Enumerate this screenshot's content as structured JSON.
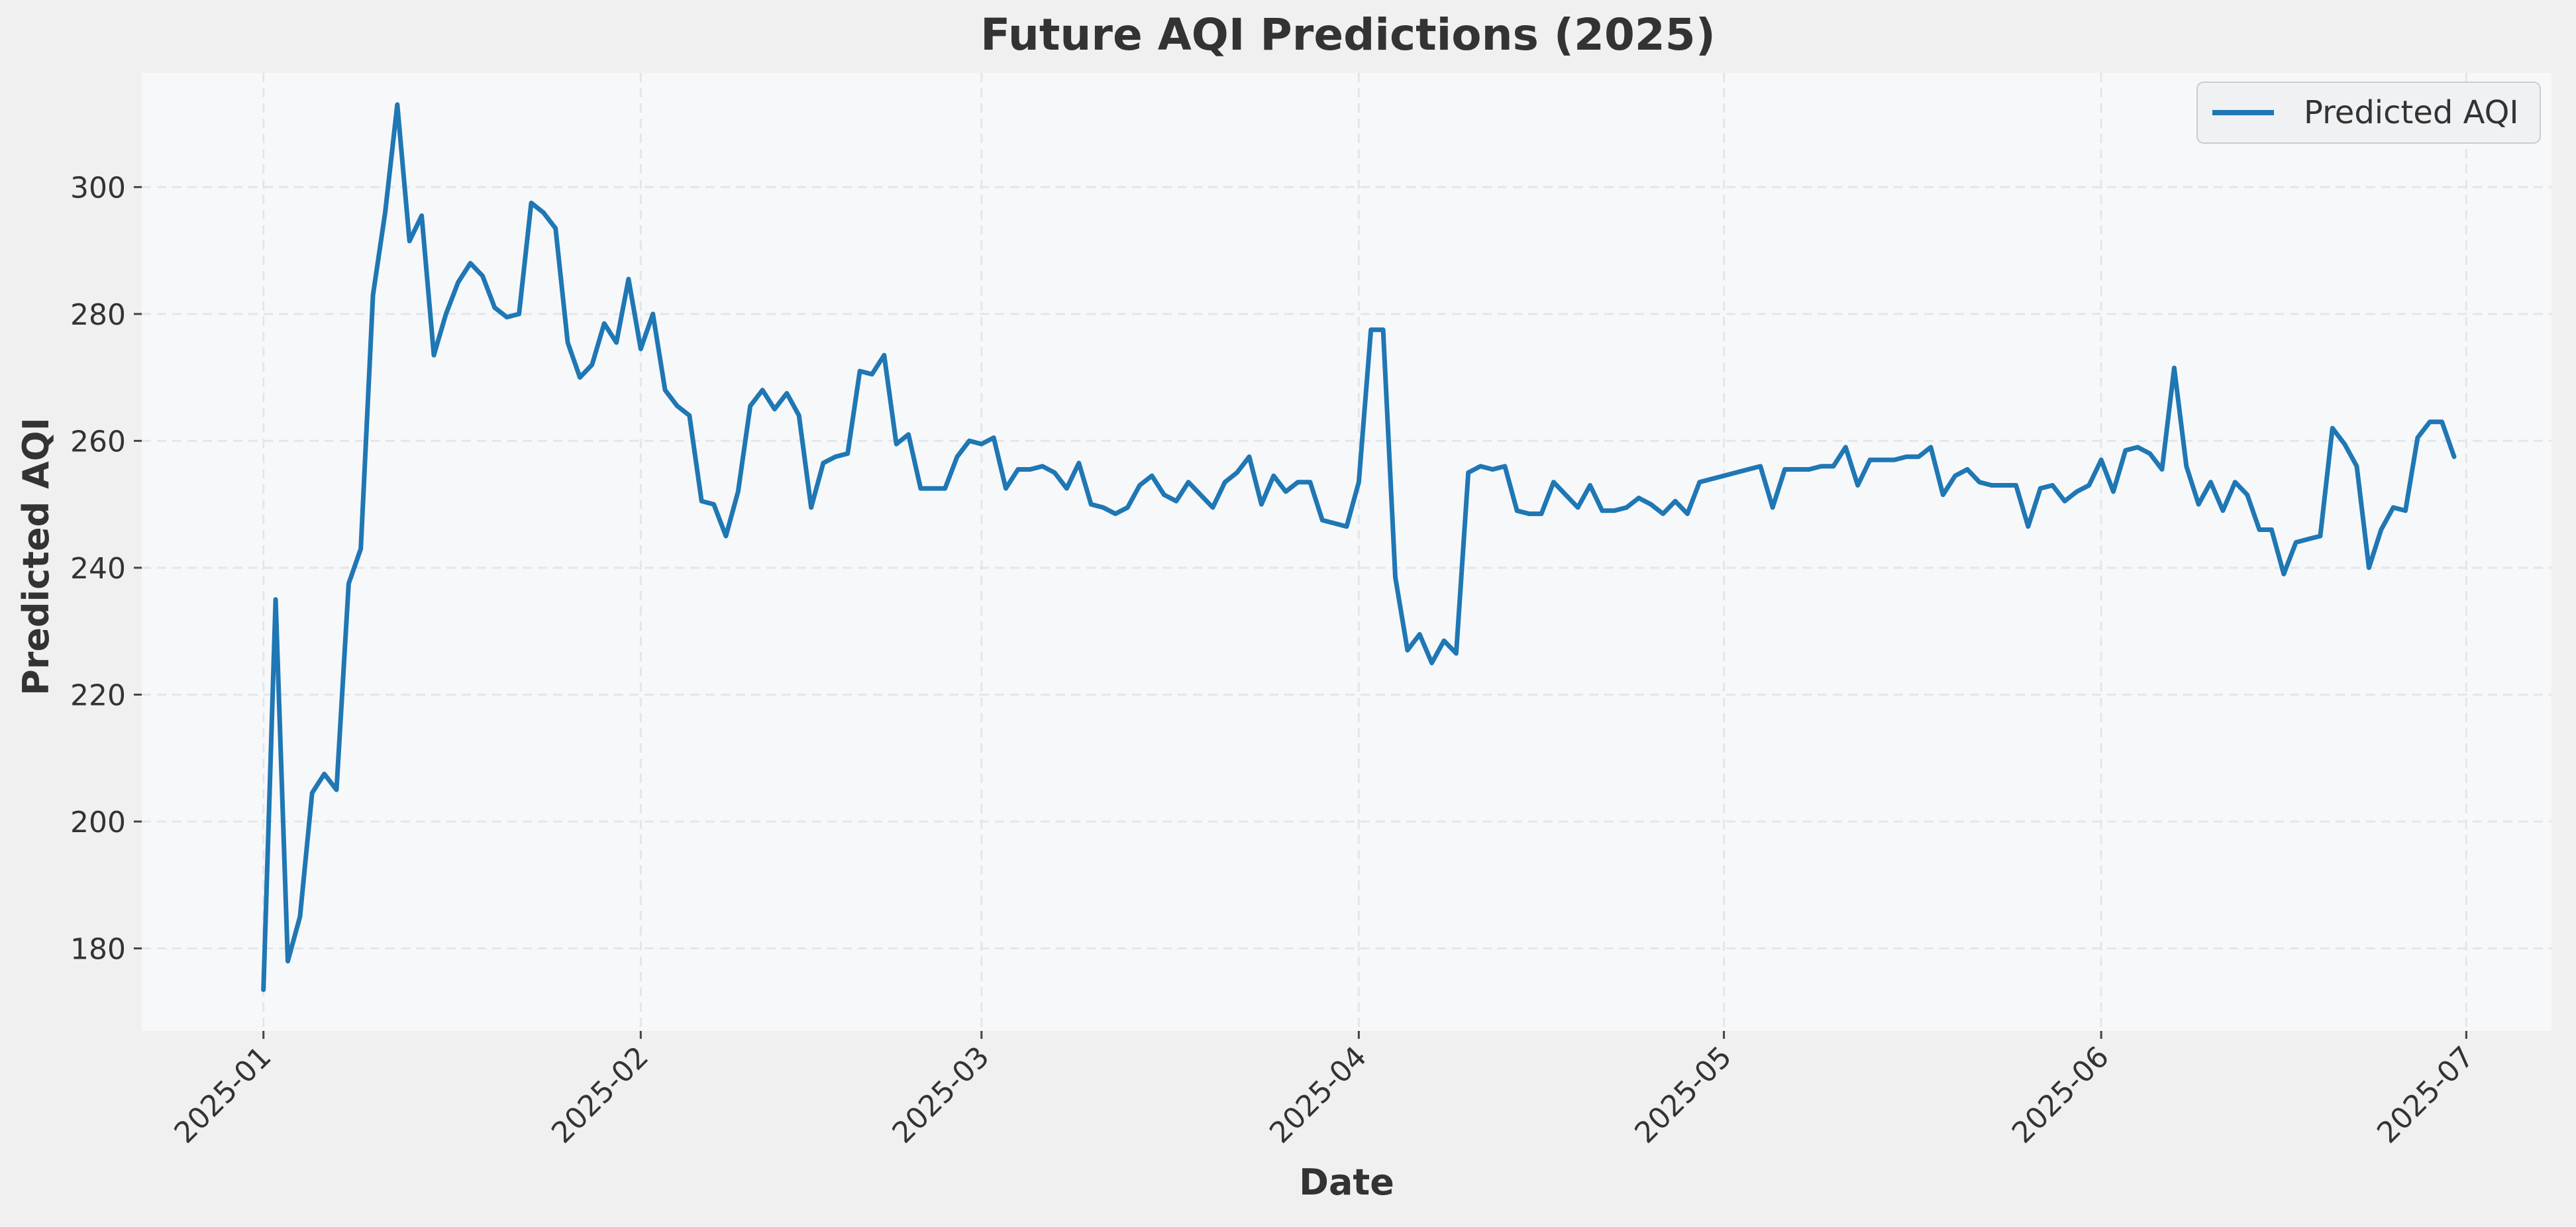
{
  "colors": {
    "figure_background": "#f0f0f0",
    "plot_background": "#f7f8fa",
    "series_line": "#1f77b4",
    "grid": "#e3e6ea",
    "text": "#333333"
  },
  "chart_data": {
    "type": "line",
    "title": "Future AQI Predictions (2025)",
    "xlabel": "Date",
    "ylabel": "Predicted AQI",
    "xlim": [
      "2024-12-22",
      "2025-07-08"
    ],
    "ylim": [
      167,
      318
    ],
    "x_ticks": [
      "2025-01-01",
      "2025-02-01",
      "2025-03-01",
      "2025-04-01",
      "2025-05-01",
      "2025-06-01",
      "2025-07-01"
    ],
    "x_tick_labels": [
      "2025-01",
      "2025-02",
      "2025-03",
      "2025-04",
      "2025-05",
      "2025-06",
      "2025-07"
    ],
    "y_ticks": [
      180,
      200,
      220,
      240,
      260,
      280,
      300
    ],
    "y_tick_labels": [
      "180",
      "200",
      "220",
      "240",
      "260",
      "280",
      "300"
    ],
    "grid": true,
    "legend": {
      "position": "top-right",
      "entries": [
        "Predicted AQI"
      ]
    },
    "start_date": "2025-01-01",
    "series": [
      {
        "name": "Predicted AQI",
        "values": [
          173.5,
          235,
          178,
          185,
          204.5,
          207.5,
          205,
          237.5,
          243,
          283,
          296,
          313,
          291.5,
          295.5,
          273.5,
          280,
          285,
          288,
          286,
          281,
          279.5,
          280,
          297.5,
          296,
          293.5,
          275.5,
          270,
          272,
          278.5,
          275.5,
          285.5,
          274.5,
          280,
          268,
          265.5,
          264,
          250.5,
          250,
          245,
          252,
          265.5,
          268,
          265,
          267.5,
          264,
          249.5,
          256.5,
          257.5,
          258,
          271,
          270.5,
          273.5,
          259.5,
          261,
          252.5,
          252.5,
          252.5,
          257.5,
          260,
          259.5,
          260.5,
          252.5,
          255.5,
          255.5,
          256,
          255,
          252.5,
          256.5,
          250,
          249.5,
          248.5,
          249.5,
          253,
          254.5,
          251.5,
          250.5,
          253.5,
          251.5,
          249.5,
          253.5,
          255,
          257.5,
          250,
          254.5,
          252,
          253.5,
          253.5,
          247.5,
          247,
          246.5,
          253.5,
          277.5,
          277.5,
          238.5,
          227,
          229.5,
          225,
          228.5,
          226.5,
          255,
          256,
          255.5,
          256,
          249,
          248.5,
          248.5,
          253.5,
          251.5,
          249.5,
          253,
          249,
          249,
          249.5,
          251,
          250,
          248.5,
          250.5,
          248.5,
          253.5,
          254,
          254.5,
          255,
          255.5,
          256,
          249.5,
          255.5,
          255.5,
          255.5,
          256,
          256,
          259,
          253,
          257,
          257,
          257,
          257.5,
          257.5,
          259,
          251.5,
          254.5,
          255.5,
          253.5,
          253,
          253,
          253,
          246.5,
          252.5,
          253,
          250.5,
          252,
          253,
          257,
          252,
          258.5,
          259,
          258,
          255.5,
          271.5,
          256,
          250,
          253.5,
          249,
          253.5,
          251.5,
          246,
          246,
          239,
          244,
          244.5,
          245,
          262,
          259.5,
          256,
          240,
          246,
          249.5,
          249,
          260.5,
          263,
          263,
          257.5
        ]
      }
    ]
  }
}
